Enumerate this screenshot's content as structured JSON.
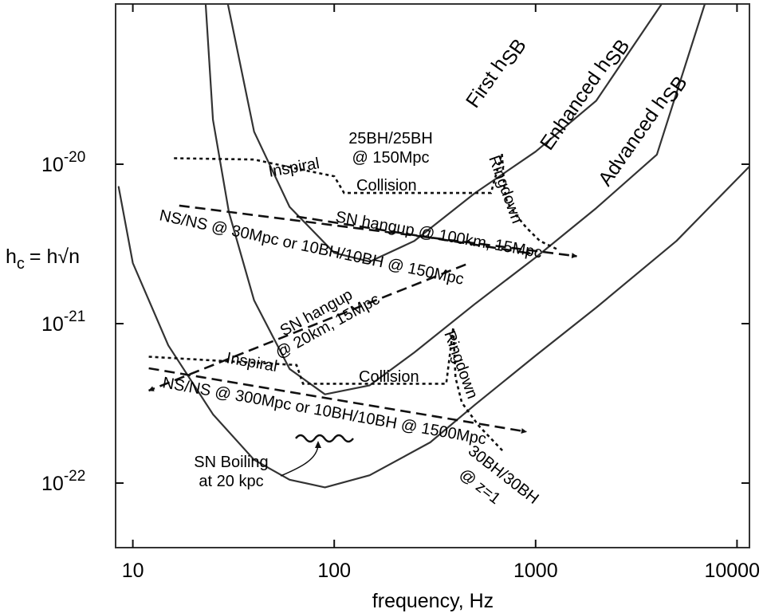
{
  "chart_data": {
    "type": "line",
    "xlabel": "frequency, Hz",
    "ylabel_main": "h",
    "ylabel_sub": "c",
    "ylabel_rest": "= h√n",
    "xscale": "log",
    "yscale": "log",
    "xlim": [
      8.5,
      12000
    ],
    "ylim": [
      2.2e-23,
      1e-19
    ],
    "x_ticks": [
      {
        "value": 10,
        "label": "10"
      },
      {
        "value": 100,
        "label": "100"
      },
      {
        "value": 1000,
        "label": "1000"
      },
      {
        "value": 10000,
        "label": "10000"
      }
    ],
    "y_ticks": [
      {
        "value": 1e-20,
        "base": "10",
        "exp": "-20"
      },
      {
        "value": 1e-21,
        "base": "10",
        "exp": "-21"
      },
      {
        "value": 1e-22,
        "base": "10",
        "exp": "-22"
      }
    ],
    "sensitivity_curves": [
      {
        "id": "first",
        "label_main": "First h",
        "label_sub": "SB",
        "points": [
          [
            29.7,
            1e-19
          ],
          [
            40,
            1.6e-20
          ],
          [
            60,
            5.4e-21
          ],
          [
            100,
            2.78e-21
          ],
          [
            150,
            2.45e-21
          ],
          [
            250,
            3.3e-21
          ],
          [
            500,
            6.6e-21
          ],
          [
            1000,
            1.2e-20
          ],
          [
            2000,
            2.5e-20
          ],
          [
            4200,
            1e-19
          ]
        ]
      },
      {
        "id": "enhanced",
        "label_main": "Enhanced h",
        "label_sub": "SB",
        "points": [
          [
            23,
            1e-19
          ],
          [
            25,
            1.9e-20
          ],
          [
            30,
            5e-21
          ],
          [
            40,
            1.4e-21
          ],
          [
            60,
            5.2e-22
          ],
          [
            90,
            3.6e-22
          ],
          [
            150,
            4.1e-22
          ],
          [
            250,
            6.6e-22
          ],
          [
            500,
            1.33e-21
          ],
          [
            1000,
            2.6e-21
          ],
          [
            2000,
            5.3e-21
          ],
          [
            4000,
            1.15e-20
          ],
          [
            6900,
            1e-19
          ]
        ]
      },
      {
        "id": "advanced",
        "label_main": "Advanced h",
        "label_sub": "SB",
        "points": [
          [
            8.5,
            7.2e-21
          ],
          [
            10,
            2.4e-21
          ],
          [
            15,
            7.3e-22
          ],
          [
            25,
            2.7e-22
          ],
          [
            40,
            1.4e-22
          ],
          [
            60,
            1.05e-22
          ],
          [
            90,
            9.4e-23
          ],
          [
            150,
            1.12e-22
          ],
          [
            300,
            1.8e-22
          ],
          [
            500,
            3.1e-22
          ],
          [
            1000,
            6.3e-22
          ],
          [
            2000,
            1.26e-21
          ],
          [
            5000,
            3.3e-21
          ],
          [
            12000,
            1.02e-20
          ]
        ]
      }
    ],
    "signal_tracks": [
      {
        "id": "inspiral-coll-ring-25",
        "style": "dotted",
        "points": [
          [
            16,
            1.09e-20
          ],
          [
            40,
            1.07e-20
          ],
          [
            62,
            9.5e-21
          ],
          [
            100,
            8.4e-21
          ],
          [
            112,
            6.6e-21
          ],
          [
            600,
            6.6e-21
          ],
          [
            680,
            1.17e-20
          ],
          [
            700,
            7e-21
          ],
          [
            720,
            5.8e-21
          ],
          [
            800,
            4.8e-21
          ],
          [
            900,
            4e-21
          ],
          [
            1050,
            3.3e-21
          ],
          [
            1300,
            2.9e-21
          ]
        ]
      },
      {
        "id": "inspiral-coll-ring-30",
        "style": "dotted",
        "points": [
          [
            12,
            6.2e-22
          ],
          [
            30,
            5.8e-22
          ],
          [
            65,
            5.5e-22
          ],
          [
            70,
            4.2e-22
          ],
          [
            360,
            4.2e-22
          ],
          [
            390,
            9.5e-22
          ],
          [
            400,
            4.6e-22
          ],
          [
            430,
            3.2e-22
          ],
          [
            520,
            2.3e-22
          ],
          [
            700,
            1.55e-22
          ]
        ]
      },
      {
        "id": "nsns-30",
        "style": "dashed",
        "arrow": true,
        "points": [
          [
            17,
            5.5e-21
          ],
          [
            1600,
            2.65e-21
          ]
        ]
      },
      {
        "id": "sn-hangup-100",
        "style": "dashed",
        "arrow": true,
        "points": [
          [
            65,
            4.7e-21
          ],
          [
            950,
            2.75e-21
          ]
        ]
      },
      {
        "id": "sn-hangup-20",
        "style": "dashed",
        "arrow": true,
        "points": [
          [
            450,
            2.35e-21
          ],
          [
            12,
            3.8e-22
          ]
        ]
      },
      {
        "id": "nsns-300",
        "style": "dashed",
        "arrow": true,
        "points": [
          [
            12,
            5.25e-22
          ],
          [
            900,
            2.1e-22
          ]
        ]
      }
    ],
    "annotations": {
      "bh25_line1": "25BH/25BH",
      "bh25_line2": "@ 150Mpc",
      "inspiral_top": "Inspiral",
      "collision_top": "Collision",
      "ringdown_top": "Ringdown",
      "sn_hangup_100": "SN hangup @ 100km, 15Mpc",
      "nsns_30": "NS/NS @ 30Mpc or 10BH/10BH @ 150Mpc",
      "sn_hangup_20_line1": "SN hangup",
      "sn_hangup_20_line2": "@ 20km, 15Mpc",
      "inspiral_bottom": "Inspiral",
      "collision_bottom": "Collision",
      "ringdown_bottom": "Ringdown",
      "nsns_300": "NS/NS @ 300Mpc or 10BH/10BH @ 1500Mpc",
      "bh30_line1": "30BH/30BH",
      "bh30_line2": "@ z=1",
      "sn_boiling_line1": "SN Boiling",
      "sn_boiling_line2": "at 20 kpc"
    }
  }
}
